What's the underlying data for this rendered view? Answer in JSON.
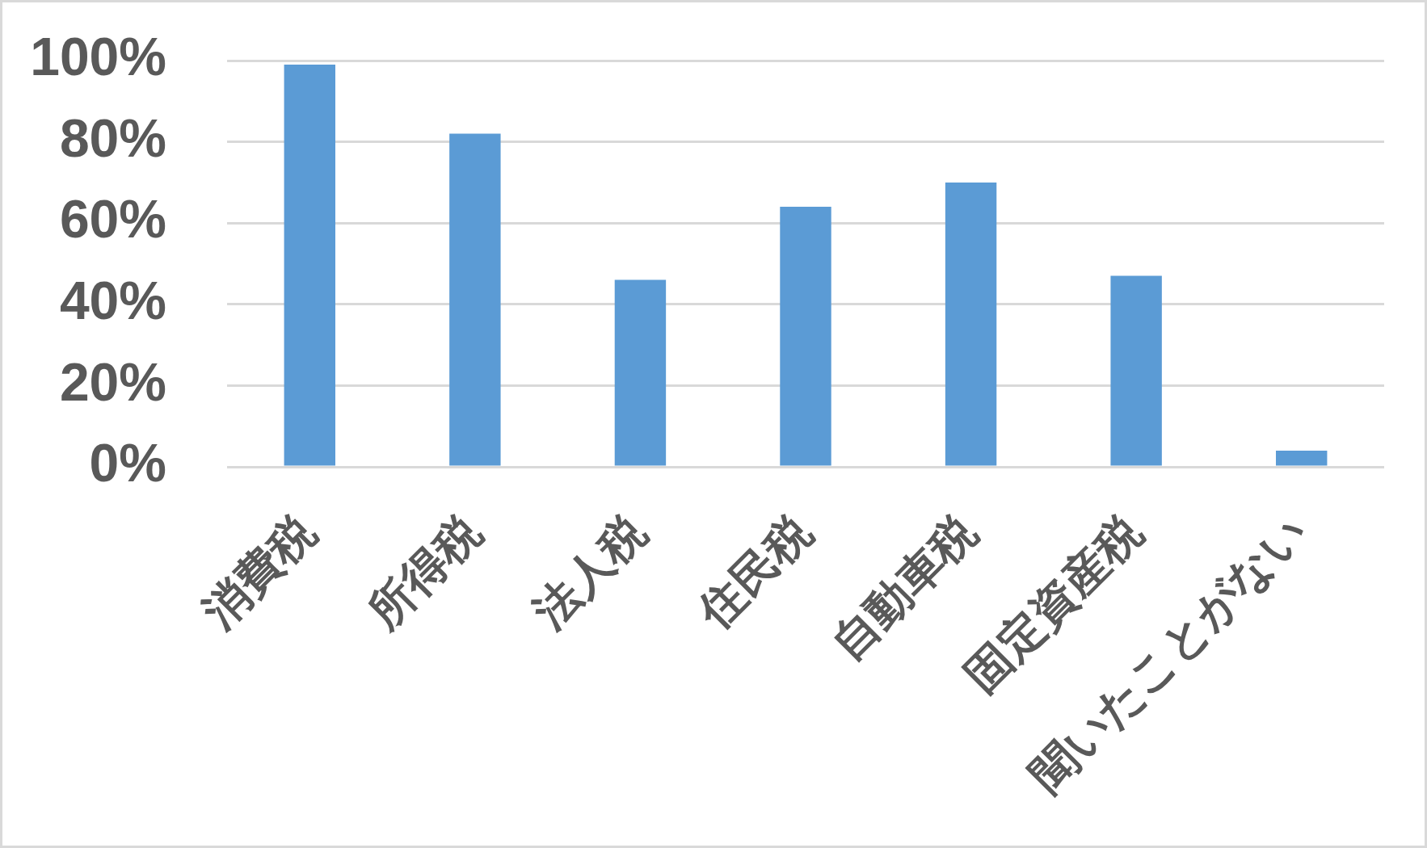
{
  "chart_data": {
    "type": "bar",
    "categories": [
      "消費税",
      "所得税",
      "法人税",
      "住民税",
      "自動車税",
      "固定資産税",
      "聞いたことがない"
    ],
    "values": [
      99,
      82,
      46,
      64,
      70,
      47,
      4
    ],
    "color": "#5b9bd5",
    "ylim": [
      0,
      100
    ],
    "yticks": [
      {
        "value": 0,
        "label": "0%"
      },
      {
        "value": 20,
        "label": "20%"
      },
      {
        "value": 40,
        "label": "40%"
      },
      {
        "value": 60,
        "label": "60%"
      },
      {
        "value": 80,
        "label": "80%"
      },
      {
        "value": 100,
        "label": "100%"
      }
    ],
    "grid": "y"
  }
}
